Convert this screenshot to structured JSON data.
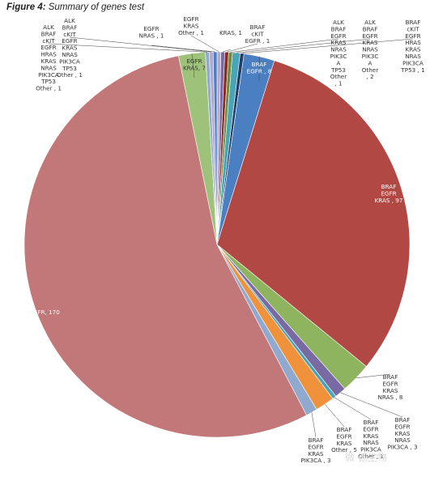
{
  "figure": {
    "title_prefix": "Figure 4:",
    "title_text": "Summary of genes test"
  },
  "watermark": "微 德生物",
  "colors": {
    "egfr_only": "#c27878",
    "braf_egfr_kras": "#b14844",
    "braf_egfr": "#4a7fc1",
    "egfr_kras": "#9fc27a",
    "braf_egfr_kras_nras": "#8fb460",
    "braf_egfr_kras_pik3ca": "#8fa9cf",
    "braf_egfr_kras_other": "#f0923b",
    "purple": "#7a6aa3",
    "teal": "#4aa4b8",
    "dark_blue": "#1f3e6d",
    "dark_red": "#8b2b28",
    "olive": "#6f8c3d",
    "light_purple": "#b3a7cf",
    "leader": "#444444"
  },
  "chart_data": {
    "type": "pie",
    "title": "Summary of genes test",
    "start_angle_deg": 0,
    "direction": "clockwise",
    "legend": "none",
    "slices": [
      {
        "label": "EGFR KRAS Other , 1",
        "lines": [
          "EGFR",
          "KRAS",
          "Other , 1"
        ],
        "value": 1,
        "color": "#b3a7cf"
      },
      {
        "label": "KRAS, 1",
        "lines": [
          "KRAS, 1"
        ],
        "value": 1,
        "color": "#7a6aa3"
      },
      {
        "label": "BRAF cKIT EGFR , 1",
        "lines": [
          "BRAF",
          "cKIT",
          "EGFR , 1"
        ],
        "value": 1,
        "color": "#8b2b28"
      },
      {
        "label": "ALK BRAF EGFR KRAS NRAS PIK3C A TP53 Other , 1",
        "lines": [
          "ALK",
          "BRAF",
          "EGFR",
          "KRAS",
          "NRAS",
          "PIK3C",
          "A",
          "TP53",
          "Other",
          ", 1"
        ],
        "value": 1,
        "color": "#6f8c3d"
      },
      {
        "label": "ALK BRAF EGFR KRAS NRAS PIK3C Other , 2",
        "lines": [
          "ALK",
          "BRAF",
          "EGFR",
          "KRAS",
          "NRAS",
          "PIK3C",
          "A",
          "Other",
          ", 2"
        ],
        "value": 2,
        "color": "#4aa4b8"
      },
      {
        "label": "BRAF cKIT EGFR HRAS KRAS NRAS PIK3CA TP53 , 1",
        "lines": [
          "BRAF",
          "cKIT",
          "EGFR",
          "HRAS",
          "KRAS",
          "NRAS",
          "PIK3CA",
          "TP53 , 1"
        ],
        "value": 1,
        "color": "#1f3e6d"
      },
      {
        "label": "BRAF EGFR , 8",
        "lines": [
          "BRAF",
          "EGFR , 8"
        ],
        "value": 8,
        "color": "#4a7fc1"
      },
      {
        "label": "BRAF EGFR KRAS , 97",
        "lines": [
          "BRAF",
          "EGFR",
          "KRAS , 97"
        ],
        "value": 97,
        "color": "#b14844"
      },
      {
        "label": "BRAF EGFR KRAS NRAS , 8",
        "lines": [
          "BRAF",
          "EGFR",
          "KRAS",
          "NRAS , 8"
        ],
        "value": 8,
        "color": "#8fb460"
      },
      {
        "label": "BRAF EGFR KRAS NRAS PIK3CA , 3",
        "lines": [
          "BRAF",
          "EGFR",
          "KRAS",
          "NRAS",
          "PIK3CA , 3"
        ],
        "value": 3,
        "color": "#7a6aa3"
      },
      {
        "label": "BRAF EGFR KRAS NRAS PIK3CA Other , 1",
        "lines": [
          "BRAF",
          "EGFR",
          "KRAS",
          "NRAS",
          "PIK3CA",
          "Other , 1"
        ],
        "value": 1,
        "color": "#4aa4b8"
      },
      {
        "label": "BRAF EGFR KRAS Other , 5",
        "lines": [
          "BRAF",
          "EGFR",
          "KRAS",
          "Other , 5"
        ],
        "value": 5,
        "color": "#f0923b"
      },
      {
        "label": "BRAF EGFR KRAS PIK3CA , 3",
        "lines": [
          "BRAF",
          "EGFR",
          "KRAS",
          "PIK3CA , 3"
        ],
        "value": 3,
        "color": "#8fa9cf"
      },
      {
        "label": "EGFR, 170",
        "lines": [
          "EGFR, 170"
        ],
        "value": 170,
        "color": "#c27878"
      },
      {
        "label": "EGFR KRAS, 7",
        "lines": [
          "EGFR",
          "KRAS, 7"
        ],
        "value": 7,
        "color": "#9fc27a"
      },
      {
        "label": "ALK BRAF cKIT EGFR HRAS KRAS NRAS PIK3CA TP53 Other , 1",
        "lines": [
          "ALK",
          "BRAF",
          "cKIT",
          "EGFR",
          "HRAS",
          "KRAS",
          "NRAS",
          "PIK3CA",
          "TP53",
          "Other , 1"
        ],
        "value": 1,
        "color": "#8fa9cf"
      },
      {
        "label": "ALK BRAF cKIT EGFR KRAS NRAS PIK3CA TP53 Other , 1",
        "lines": [
          "ALK",
          "BRAF",
          "cKIT",
          "EGFR",
          "KRAS",
          "NRAS",
          "PIK3CA",
          "TP53",
          "Other , 1"
        ],
        "value": 1,
        "color": "#b3a7cf"
      },
      {
        "label": "EGFR NRAS , 1",
        "lines": [
          "EGFR",
          "NRAS , 1"
        ],
        "value": 1,
        "color": "#4a7fc1"
      }
    ]
  }
}
